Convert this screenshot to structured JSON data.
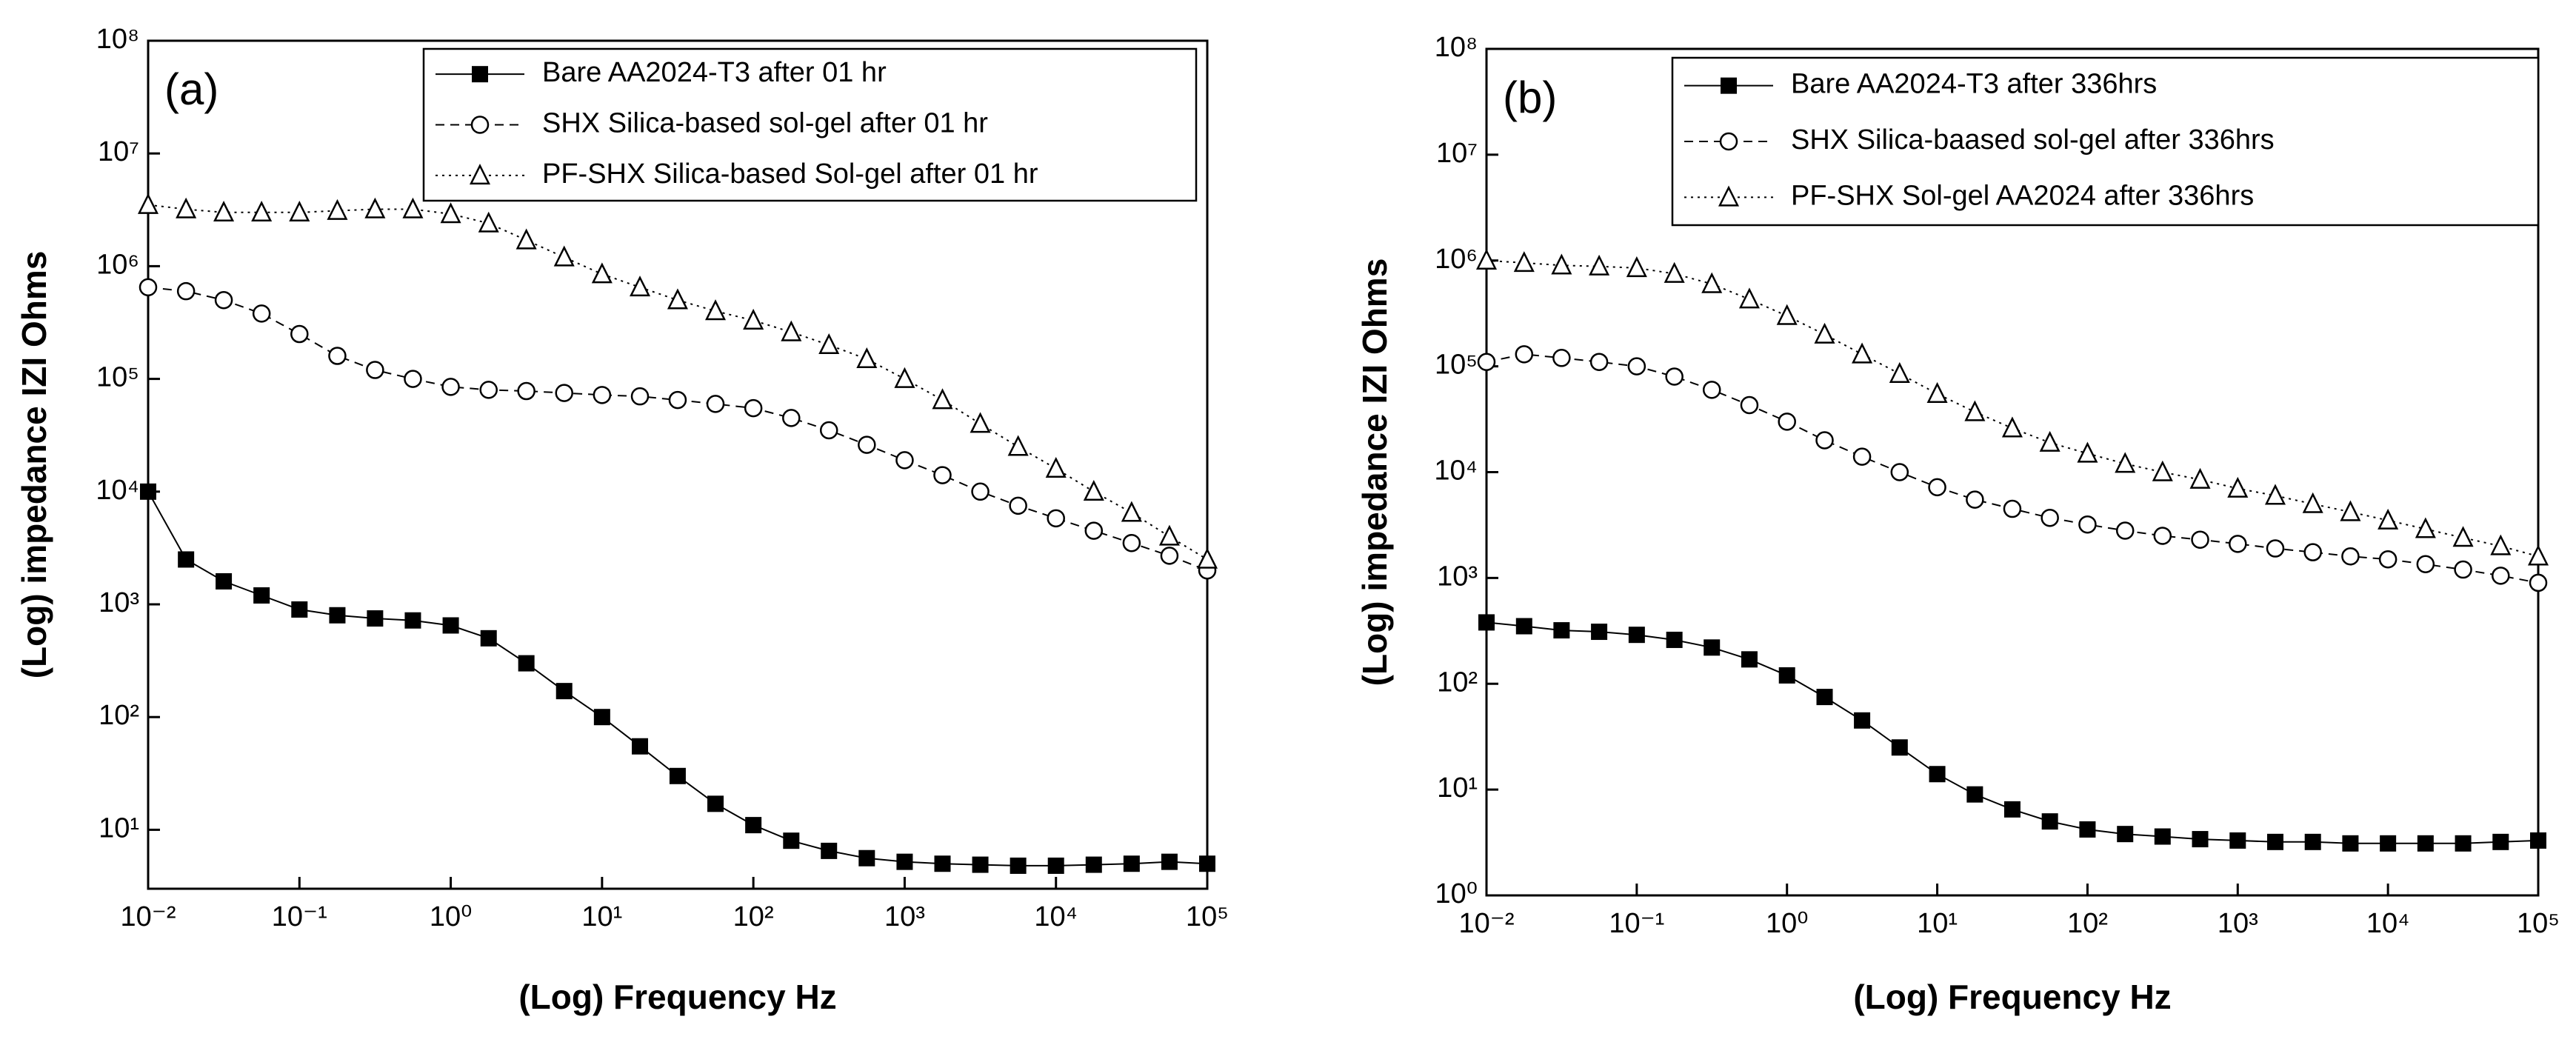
{
  "chart_data": [
    {
      "type": "line",
      "title": "(a)",
      "xlabel": "(Log) Frequency Hz",
      "ylabel": "(Log) impedance IZI Ohms",
      "xscale": "log",
      "yscale": "log",
      "xlim": [
        0.01,
        100000
      ],
      "ylim": [
        3,
        100000000
      ],
      "xticks": [
        {
          "value": 0.01,
          "label": "10⁻²"
        },
        {
          "value": 0.1,
          "label": "10⁻¹"
        },
        {
          "value": 1,
          "label": "10⁰"
        },
        {
          "value": 10,
          "label": "10¹"
        },
        {
          "value": 100,
          "label": "10²"
        },
        {
          "value": 1000,
          "label": "10³"
        },
        {
          "value": 10000,
          "label": "10⁴"
        },
        {
          "value": 100000,
          "label": "10⁵"
        }
      ],
      "yticks": [
        {
          "value": 10,
          "label": "10¹"
        },
        {
          "value": 100,
          "label": "10²"
        },
        {
          "value": 1000,
          "label": "10³"
        },
        {
          "value": 10000,
          "label": "10⁴"
        },
        {
          "value": 100000,
          "label": "10⁵"
        },
        {
          "value": 1000000,
          "label": "10⁶"
        },
        {
          "value": 10000000,
          "label": "10⁷"
        },
        {
          "value": 100000000,
          "label": "10⁸"
        }
      ],
      "legend": "upper right",
      "x": [
        0.01,
        0.0178,
        0.0316,
        0.0562,
        0.1,
        0.178,
        0.316,
        0.562,
        1,
        1.78,
        3.16,
        5.62,
        10,
        17.8,
        31.6,
        56.2,
        100,
        178,
        316,
        562,
        1000,
        1778,
        3162,
        5623,
        10000,
        17783,
        31623,
        56234,
        100000
      ],
      "series": [
        {
          "name": "Bare AA2024-T3 after 01 hr",
          "color": "#000000",
          "marker": "square",
          "line_style": "solid",
          "values": [
            10000,
            2500,
            1600,
            1200,
            900,
            800,
            750,
            720,
            650,
            500,
            300,
            170,
            100,
            55,
            30,
            17,
            11,
            8,
            6.5,
            5.6,
            5.2,
            5,
            4.9,
            4.8,
            4.8,
            4.9,
            5,
            5.2,
            5
          ]
        },
        {
          "name": "SHX Silica-based sol-gel after 01 hr",
          "color": "#000000",
          "marker": "circle",
          "line_style": "dashed",
          "values": [
            650000,
            600000,
            500000,
            380000,
            250000,
            160000,
            120000,
            100000,
            85000,
            80000,
            78000,
            75000,
            72000,
            70000,
            65000,
            60000,
            55000,
            45000,
            35000,
            26000,
            19000,
            14000,
            10000,
            7500,
            5800,
            4500,
            3500,
            2700,
            2000
          ]
        },
        {
          "name": "PF-SHX Silica-based Sol-gel after 01 hr",
          "color": "#000000",
          "marker": "triangle",
          "line_style": "dotted",
          "values": [
            3500000,
            3200000,
            3000000,
            3000000,
            3000000,
            3100000,
            3200000,
            3200000,
            2900000,
            2400000,
            1700000,
            1200000,
            850000,
            650000,
            500000,
            400000,
            330000,
            260000,
            200000,
            150000,
            100000,
            65000,
            40000,
            25000,
            16000,
            10000,
            6500,
            4000,
            2500
          ]
        }
      ]
    },
    {
      "type": "line",
      "title": "(b)",
      "xlabel": "(Log) Frequency Hz",
      "ylabel": "(Log) impedance IZI Ohms",
      "xscale": "log",
      "yscale": "log",
      "xlim": [
        0.01,
        100000
      ],
      "ylim": [
        1,
        100000000
      ],
      "xticks": [
        {
          "value": 0.01,
          "label": "10⁻²"
        },
        {
          "value": 0.1,
          "label": "10⁻¹"
        },
        {
          "value": 1,
          "label": "10⁰"
        },
        {
          "value": 10,
          "label": "10¹"
        },
        {
          "value": 100,
          "label": "10²"
        },
        {
          "value": 1000,
          "label": "10³"
        },
        {
          "value": 10000,
          "label": "10⁴"
        },
        {
          "value": 100000,
          "label": "10⁵"
        }
      ],
      "yticks": [
        {
          "value": 1,
          "label": "10⁰"
        },
        {
          "value": 10,
          "label": "10¹"
        },
        {
          "value": 100,
          "label": "10²"
        },
        {
          "value": 1000,
          "label": "10³"
        },
        {
          "value": 10000,
          "label": "10⁴"
        },
        {
          "value": 100000,
          "label": "10⁵"
        },
        {
          "value": 1000000,
          "label": "10⁶"
        },
        {
          "value": 10000000,
          "label": "10⁷"
        },
        {
          "value": 100000000,
          "label": "10⁸"
        }
      ],
      "legend": "upper right",
      "x": [
        0.01,
        0.0178,
        0.0316,
        0.0562,
        0.1,
        0.178,
        0.316,
        0.562,
        1,
        1.78,
        3.16,
        5.62,
        10,
        17.8,
        31.6,
        56.2,
        100,
        178,
        316,
        562,
        1000,
        1778,
        3162,
        5623,
        10000,
        17783,
        31623,
        56234,
        100000
      ],
      "series": [
        {
          "name": "Bare AA2024-T3 after 336hrs",
          "color": "#000000",
          "marker": "square",
          "line_style": "solid",
          "values": [
            380,
            350,
            320,
            310,
            290,
            260,
            220,
            170,
            120,
            75,
            45,
            25,
            14,
            9,
            6.5,
            5,
            4.2,
            3.8,
            3.6,
            3.4,
            3.3,
            3.2,
            3.2,
            3.1,
            3.1,
            3.1,
            3.1,
            3.2,
            3.3
          ]
        },
        {
          "name": "SHX Silica-baased sol-gel after  336hrs",
          "color": "#000000",
          "marker": "circle",
          "line_style": "dashed",
          "values": [
            110000,
            130000,
            120000,
            110000,
            100000,
            80000,
            60000,
            43000,
            30000,
            20000,
            14000,
            10000,
            7200,
            5500,
            4500,
            3700,
            3200,
            2800,
            2500,
            2300,
            2100,
            1900,
            1750,
            1600,
            1500,
            1350,
            1200,
            1050,
            900
          ]
        },
        {
          "name": "PF-SHX Sol-gel AA2024 after 336hrs",
          "color": "#000000",
          "marker": "triangle",
          "line_style": "dotted",
          "values": [
            1000000,
            950000,
            900000,
            880000,
            850000,
            750000,
            600000,
            430000,
            300000,
            200000,
            130000,
            85000,
            55000,
            37000,
            26000,
            19000,
            15000,
            12000,
            10000,
            8500,
            7000,
            6000,
            5000,
            4200,
            3500,
            2900,
            2400,
            2000,
            1600
          ]
        }
      ]
    }
  ]
}
